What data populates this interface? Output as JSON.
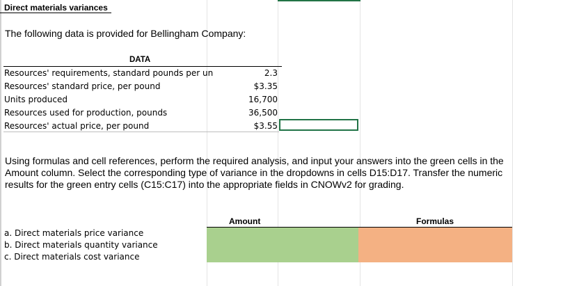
{
  "sheet": {
    "title": "Direct materials variances",
    "intro": "The following data is provided for Bellingham Company:",
    "data_header": "DATA",
    "data_rows": [
      {
        "label": "Resources' requirements, standard pounds per un",
        "value": "2.3"
      },
      {
        "label": "Resources' standard price, per pound",
        "value": "$3.35"
      },
      {
        "label": "Units produced",
        "value": "16,700"
      },
      {
        "label": "Resources used for production, pounds",
        "value": "36,500"
      },
      {
        "label": "Resources' actual price, per pound",
        "value": "$3.55"
      }
    ],
    "instructions": "Using formulas and cell references, perform the required analysis, and input your answers into the green cells in the Amount column. Select the corresponding type of variance in the dropdowns in cells D15:D17. Transfer the numeric results for the green entry cells (C15:C17) into the appropriate fields in CNOWv2 for grading.",
    "columns": {
      "amount": "Amount",
      "formulas": "Formulas"
    },
    "variances": [
      "a.  Direct materials price variance",
      "b.  Direct materials quantity variance",
      "c.  Direct materials cost variance"
    ]
  },
  "colors": {
    "entry_green": "#a9d08e",
    "formula_orange": "#f4b183",
    "selection_border": "#217346"
  }
}
